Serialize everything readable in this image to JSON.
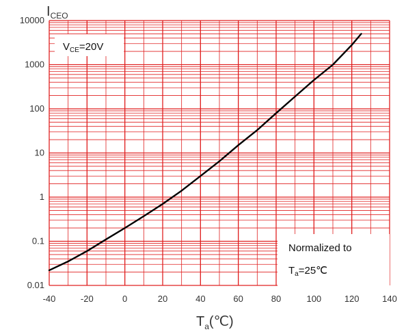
{
  "chart_data": {
    "type": "line",
    "x_axis": {
      "label_main": "T",
      "label_sub": "a",
      "label_unit": "(℃)",
      "range": [
        -40,
        140
      ],
      "ticks": [
        -40,
        -20,
        0,
        20,
        40,
        60,
        80,
        100,
        120,
        140
      ]
    },
    "y_axis": {
      "label_main": "I",
      "label_sub": "CEO",
      "scale": "log",
      "range": [
        0.01,
        10000
      ],
      "ticks": [
        "0.01",
        "0.1",
        "1",
        "10",
        "100",
        "1000",
        "10000"
      ]
    },
    "grid": true,
    "grid_color": "#e02020",
    "line_color": "#000000",
    "series": [
      {
        "x": [
          -40,
          -30,
          -20,
          -10,
          0,
          10,
          20,
          30,
          40,
          50,
          60,
          70,
          80,
          90,
          100,
          110,
          120,
          125
        ],
        "y": [
          0.022,
          0.035,
          0.06,
          0.11,
          0.2,
          0.37,
          0.7,
          1.4,
          3,
          6.5,
          15,
          33,
          80,
          190,
          450,
          1000,
          2800,
          5000
        ]
      }
    ],
    "annotations": {
      "condition": {
        "main": "V",
        "sub": "CE",
        "rest": "=20V"
      },
      "note_line1": "Normalized to",
      "note_line2": {
        "main": "T",
        "sub": "a",
        "rest": "=25℃"
      }
    }
  }
}
